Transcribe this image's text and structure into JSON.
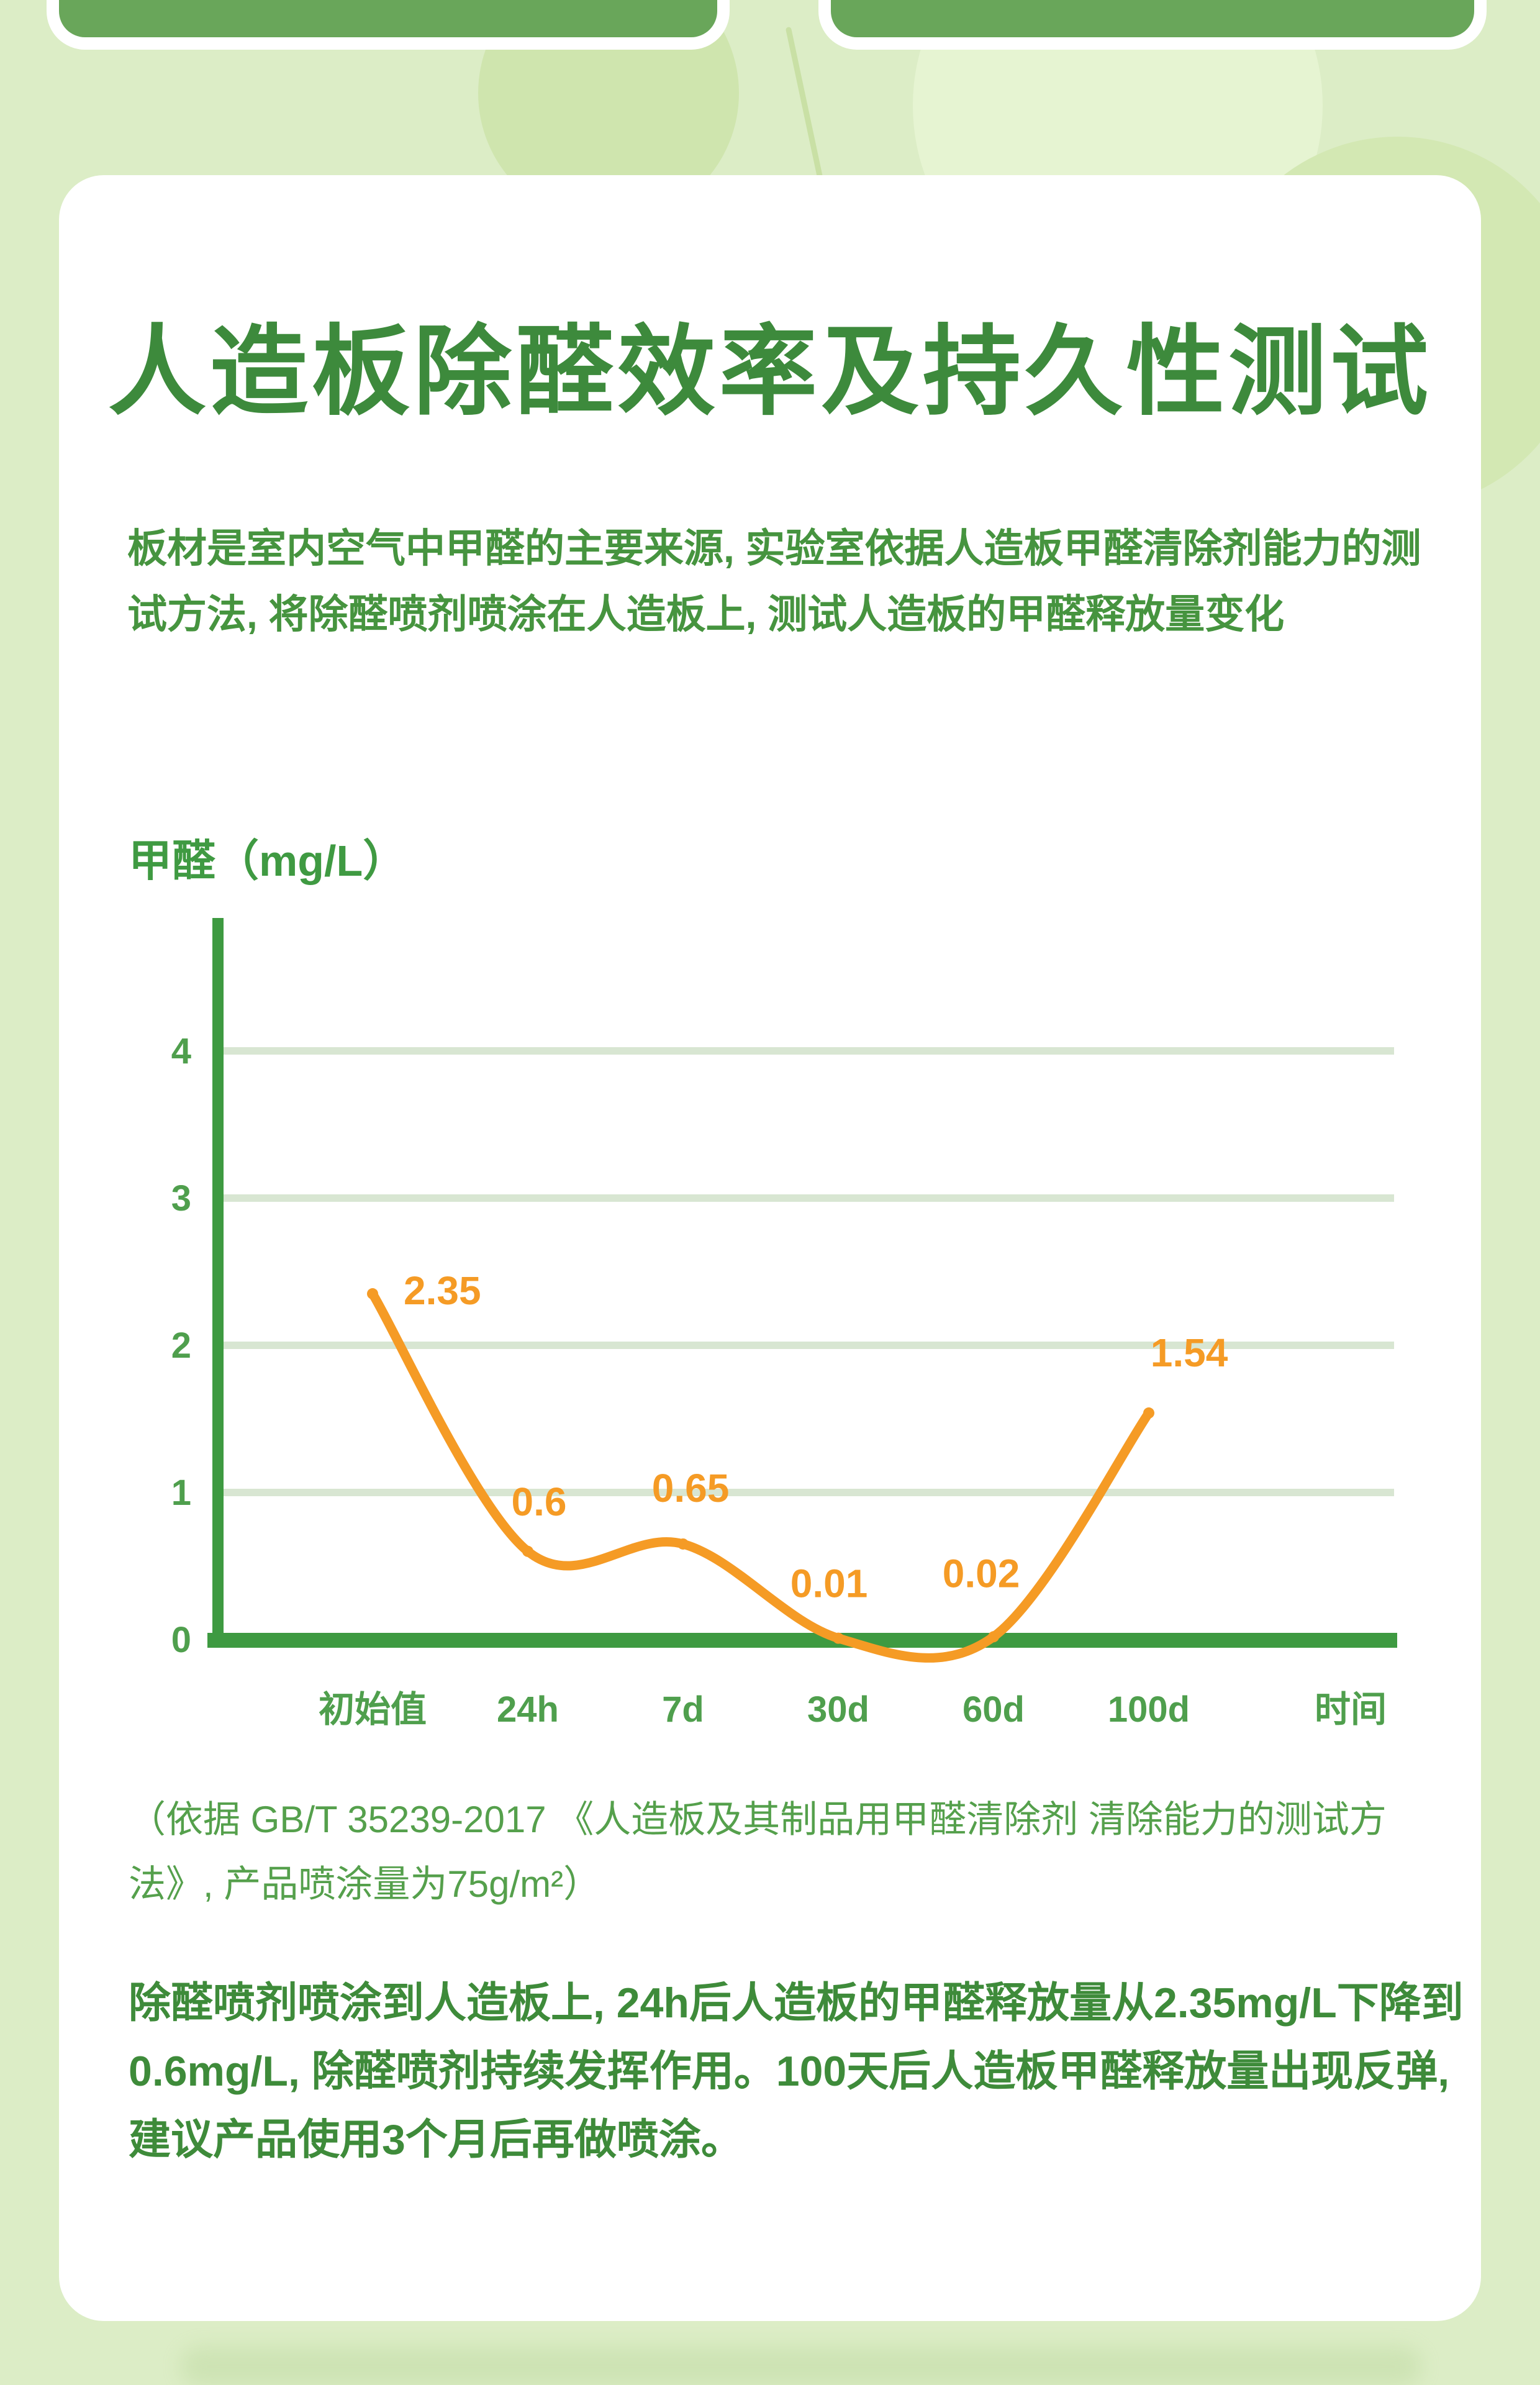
{
  "page": {
    "title": "人造板除醛效率及持久性测试",
    "intro": "板材是室内空气中甲醛的主要来源, 实验室依据人造板甲醛清除剂能力的测试方法, 将除醛喷剂喷涂在人造板上, 测试人造板的甲醛释放量变化",
    "footnote": "（依据 GB/T 35239-2017 《人造板及其制品用甲醛清除剂 清除能力的测试方法》, 产品喷涂量为75g/m²）",
    "conclusion": "除醛喷剂喷涂到人造板上, 24h后人造板的甲醛释放量从2.35mg/L下降到0.6mg/L, 除醛喷剂持续发挥作用。100天后人造板甲醛释放量出现反弹, 建议产品使用3个月后再做喷涂。"
  },
  "chart_data": {
    "type": "line",
    "title": "人造板除醛效率及持久性测试",
    "ylabel": "甲醛（mg/L）",
    "xlabel": "时间",
    "categories": [
      "初始值",
      "24h",
      "7d",
      "30d",
      "60d",
      "100d"
    ],
    "values": [
      2.35,
      0.6,
      0.65,
      0.01,
      0.02,
      1.54
    ],
    "point_labels": [
      "2.35",
      "0.6",
      "0.65",
      "0.01",
      "0.02",
      "1.54"
    ],
    "yticks": [
      0,
      1,
      2,
      3,
      4
    ],
    "ylim": [
      0,
      4.6
    ],
    "grid": true,
    "legend": "none",
    "line_color": "#f59b25",
    "axis_color": "#3e9a41",
    "tick_color": "#4f9f4d",
    "grid_color": "#d8e6d2"
  },
  "colors": {
    "background": "#dcedc6",
    "panel": "#ffffff",
    "top_card_green": "#69a65a",
    "title_green": "#3d8a3c",
    "body_green": "#46943f",
    "accent_orange": "#f59b25"
  }
}
